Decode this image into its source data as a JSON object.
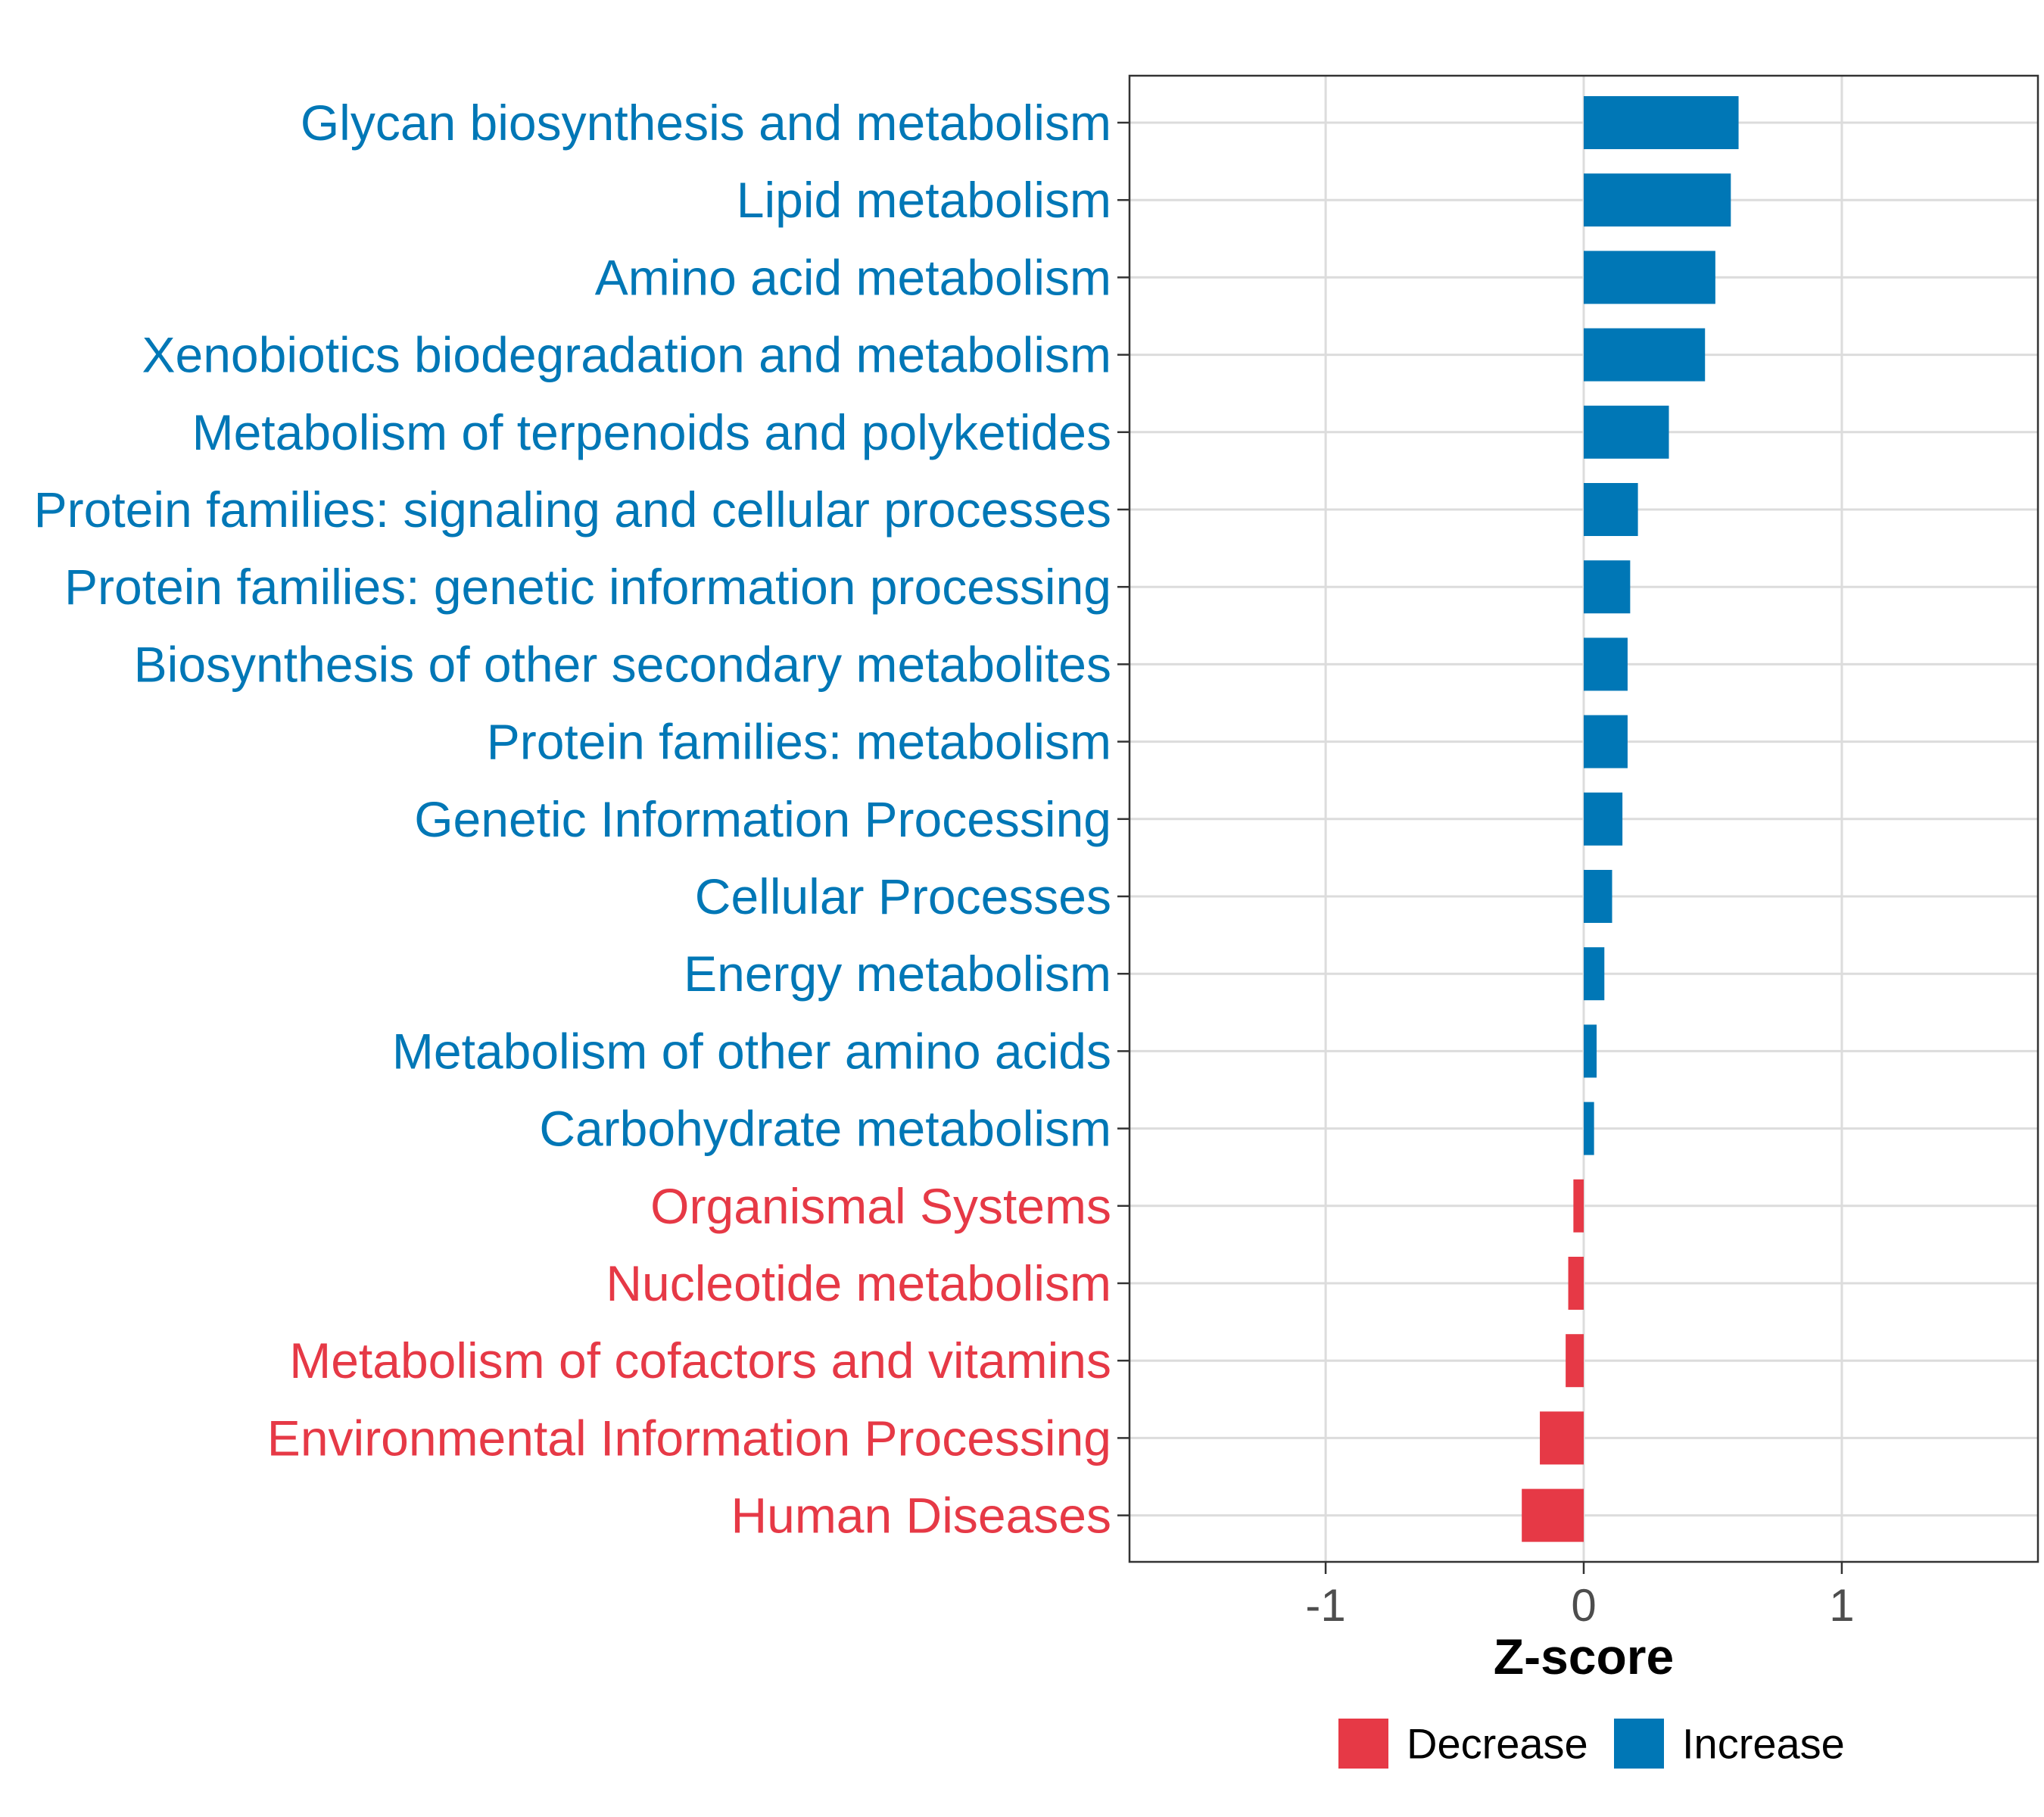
{
  "chart_data": {
    "type": "bar",
    "orientation": "horizontal",
    "categories": [
      "Glycan biosynthesis and metabolism",
      "Lipid metabolism",
      "Amino acid metabolism",
      "Xenobiotics biodegradation and metabolism",
      "Metabolism of terpenoids and polyketides",
      "Protein families: signaling and cellular processes",
      "Protein families: genetic information processing",
      "Biosynthesis of other secondary metabolites",
      "Protein families: metabolism",
      "Genetic Information Processing",
      "Cellular Processes",
      "Energy metabolism",
      "Metabolism of other amino acids",
      "Carbohydrate metabolism",
      "Organismal Systems",
      "Nucleotide metabolism",
      "Metabolism of cofactors and vitamins",
      "Environmental Information Processing",
      "Human Diseases"
    ],
    "values": [
      0.6,
      0.57,
      0.51,
      0.47,
      0.33,
      0.21,
      0.18,
      0.17,
      0.17,
      0.15,
      0.11,
      0.08,
      0.05,
      0.04,
      -0.04,
      -0.06,
      -0.07,
      -0.17,
      -0.24
    ],
    "groups": [
      "Increase",
      "Increase",
      "Increase",
      "Increase",
      "Increase",
      "Increase",
      "Increase",
      "Increase",
      "Increase",
      "Increase",
      "Increase",
      "Increase",
      "Increase",
      "Increase",
      "Decrease",
      "Decrease",
      "Decrease",
      "Decrease",
      "Decrease"
    ],
    "xlabel": "Z-score",
    "xlim": [
      -1.76,
      1.76
    ],
    "xticks": [
      -1,
      0,
      1
    ],
    "xtick_labels": [
      "-1",
      "0",
      "1"
    ],
    "grid": true,
    "legend": {
      "position": "bottom",
      "entries": [
        {
          "name": "Decrease",
          "color": "#e63946"
        },
        {
          "name": "Increase",
          "color": "#0077b6"
        }
      ]
    },
    "colors": {
      "Increase": "#0077b6",
      "Decrease": "#e63946"
    }
  }
}
